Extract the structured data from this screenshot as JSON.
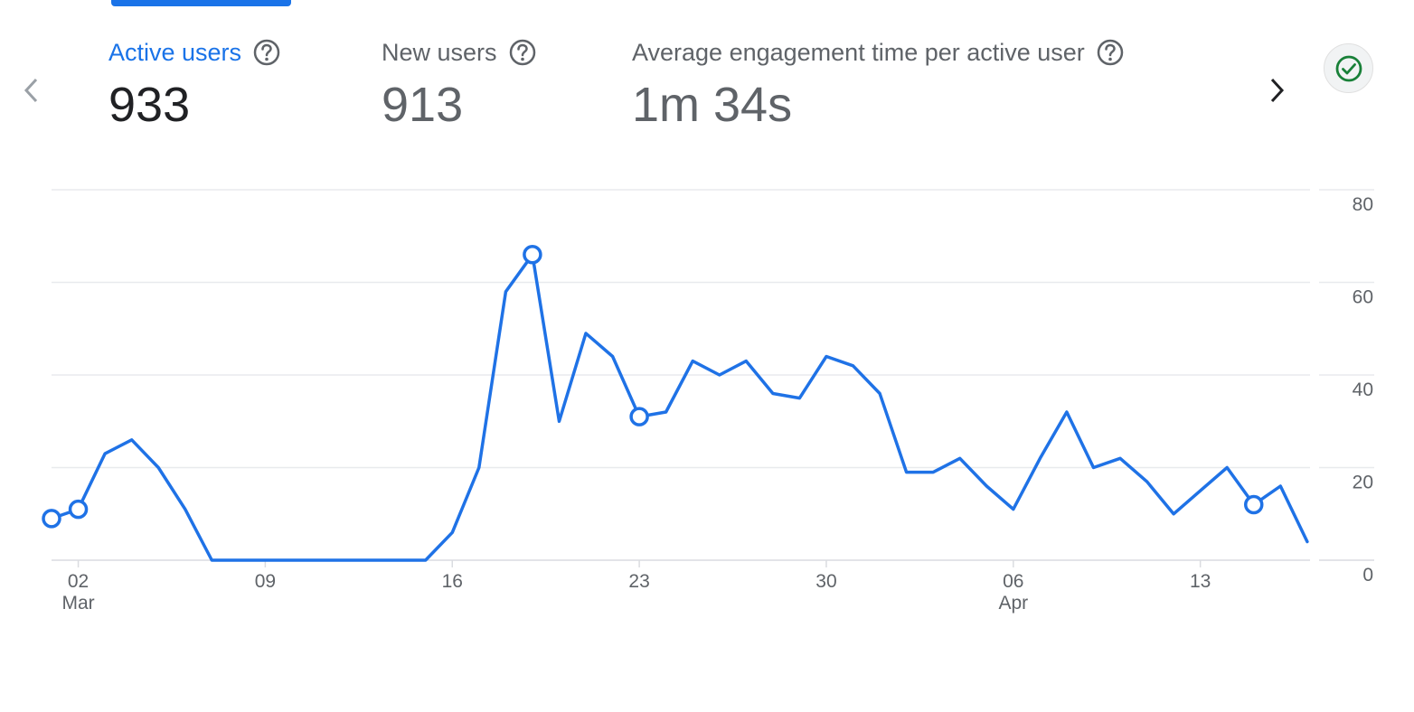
{
  "metrics": [
    {
      "label": "Active users",
      "value": "933"
    },
    {
      "label": "New users",
      "value": "913"
    },
    {
      "label": "Average engagement time per active user",
      "value": "1m 34s"
    }
  ],
  "icons": {
    "prev": "chevron-left-icon",
    "next": "chevron-right-icon",
    "help": "help-circle-icon",
    "status": "check-circle-icon"
  },
  "colors": {
    "accent": "#1a73e8",
    "line": "#1f72e6",
    "status_green": "#188038",
    "grid": "#e8eaed",
    "muted_text": "#5f6368"
  },
  "chart_data": {
    "type": "line",
    "title": "",
    "xlabel": "",
    "ylabel": "",
    "ylim": [
      0,
      80
    ],
    "yticks": [
      0,
      20,
      40,
      60,
      80
    ],
    "grid": true,
    "y_axis_side": "right",
    "x_tick_labels": [
      {
        "date": "2025-03-02",
        "label": "02",
        "sublabel": "Mar"
      },
      {
        "date": "2025-03-09",
        "label": "09",
        "sublabel": ""
      },
      {
        "date": "2025-03-16",
        "label": "16",
        "sublabel": ""
      },
      {
        "date": "2025-03-23",
        "label": "23",
        "sublabel": ""
      },
      {
        "date": "2025-03-30",
        "label": "30",
        "sublabel": ""
      },
      {
        "date": "2025-04-06",
        "label": "06",
        "sublabel": "Apr"
      },
      {
        "date": "2025-04-13",
        "label": "13",
        "sublabel": ""
      }
    ],
    "series": [
      {
        "x": [
          "2025-03-01",
          "2025-03-02",
          "2025-03-03",
          "2025-03-04",
          "2025-03-05",
          "2025-03-06",
          "2025-03-07",
          "2025-03-08",
          "2025-03-09",
          "2025-03-10",
          "2025-03-11",
          "2025-03-12",
          "2025-03-13",
          "2025-03-14",
          "2025-03-15",
          "2025-03-16",
          "2025-03-17",
          "2025-03-18",
          "2025-03-19",
          "2025-03-20",
          "2025-03-21",
          "2025-03-22",
          "2025-03-23",
          "2025-03-24",
          "2025-03-25",
          "2025-03-26",
          "2025-03-27",
          "2025-03-28",
          "2025-03-29",
          "2025-03-30",
          "2025-03-31",
          "2025-04-01",
          "2025-04-02",
          "2025-04-03",
          "2025-04-04",
          "2025-04-05",
          "2025-04-06",
          "2025-04-07",
          "2025-04-08",
          "2025-04-09",
          "2025-04-10",
          "2025-04-11",
          "2025-04-12",
          "2025-04-13",
          "2025-04-14",
          "2025-04-15",
          "2025-04-16",
          "2025-04-17"
        ],
        "values": [
          9,
          11,
          23,
          26,
          20,
          11,
          0,
          0,
          0,
          0,
          0,
          0,
          0,
          0,
          0,
          6,
          20,
          58,
          66,
          30,
          49,
          44,
          31,
          32,
          43,
          40,
          43,
          36,
          35,
          44,
          42,
          36,
          19,
          19,
          22,
          16,
          11,
          22,
          32,
          20,
          22,
          17,
          10,
          15,
          20,
          12,
          16,
          4
        ],
        "markers": [
          "2025-03-01",
          "2025-03-02",
          "2025-03-19",
          "2025-03-23",
          "2025-04-15"
        ]
      }
    ]
  }
}
